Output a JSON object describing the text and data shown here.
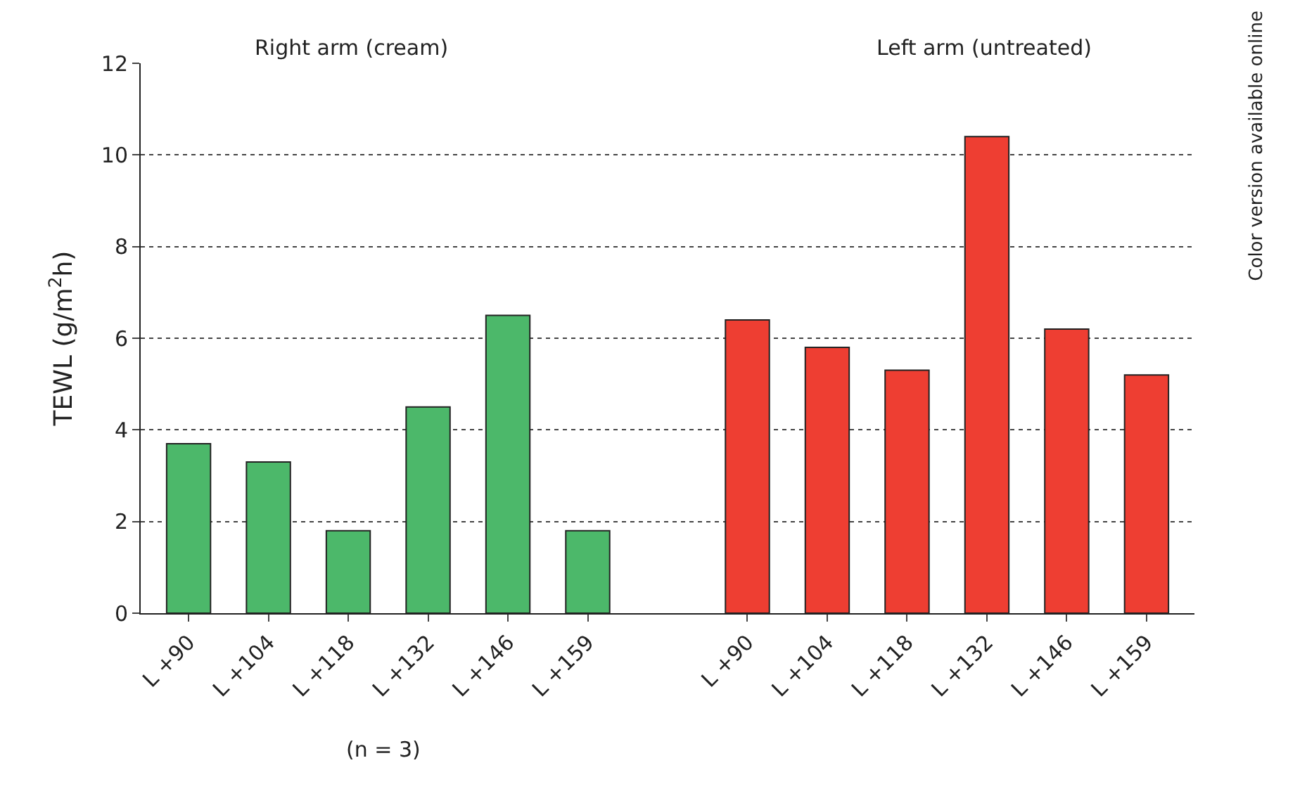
{
  "chart_data": {
    "type": "bar",
    "ylabel": "TEWL (g/m$^{2}$h)",
    "categories": [
      "L +90",
      "L +104",
      "L +118",
      "L +132",
      "L +146",
      "L +159",
      null,
      "L +90",
      "L +104",
      "L +118",
      "L +132",
      "L +146",
      "L +159"
    ],
    "series": [
      {
        "color": "#4cb86a",
        "values": [
          3.7,
          3.3,
          1.8,
          4.5,
          6.5,
          1.8,
          null,
          null,
          null,
          null,
          null,
          null,
          null
        ]
      },
      {
        "color": "#ee3e32",
        "values": [
          null,
          null,
          null,
          null,
          null,
          null,
          null,
          6.4,
          5.8,
          5.3,
          10.4,
          6.2,
          5.2
        ]
      }
    ],
    "ylim": [
      0,
      12
    ],
    "yticks": [
      0,
      2,
      4,
      6,
      8,
      10,
      12
    ],
    "grid": "y",
    "legend": false,
    "annotations": [
      "Right arm (cream)",
      "Left arm (untreated)",
      "(n = 3)",
      "Color version available online"
    ]
  }
}
